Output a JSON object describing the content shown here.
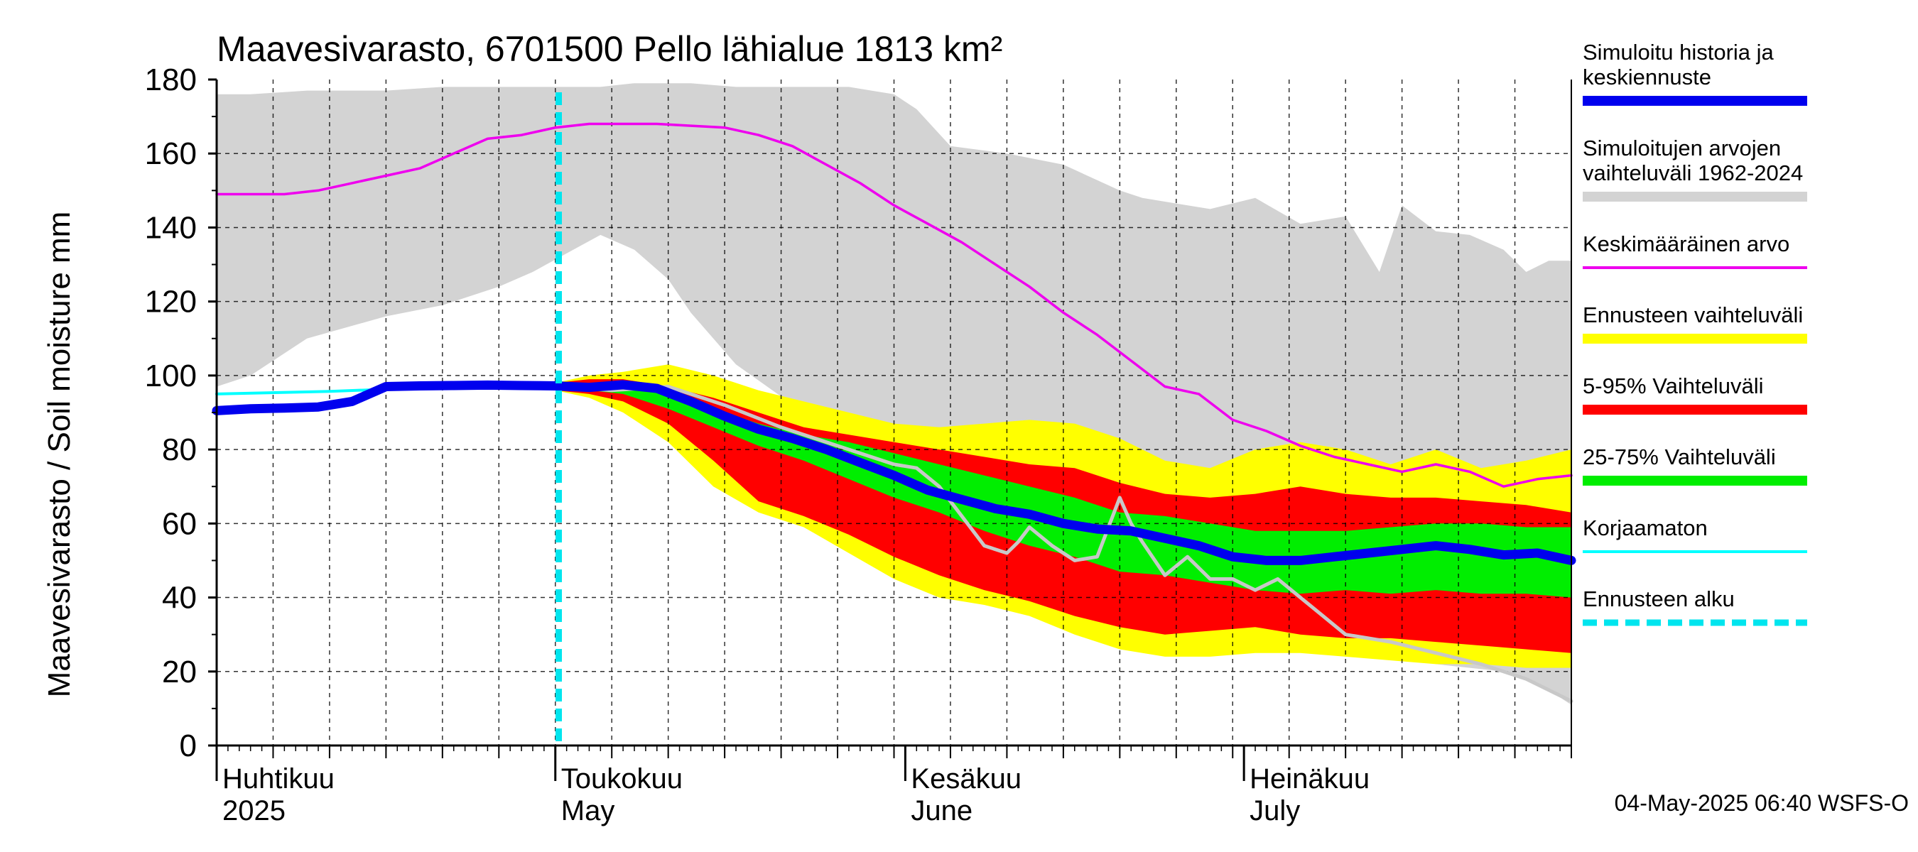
{
  "chart_data": {
    "type": "area",
    "title": "Maavesivarasto, 6701500 Pello lähialue 1813 km²",
    "ylabel": "Maavesivarasto / Soil moisture   mm",
    "ylim": [
      0,
      180
    ],
    "yticks": [
      0,
      20,
      40,
      60,
      80,
      100,
      120,
      140,
      160,
      180
    ],
    "xdomain_days": [
      0,
      120
    ],
    "x_unit": "days since 2025-04-01",
    "month_labels": [
      {
        "fi": "Huhtikuu",
        "en": "2025",
        "day": 0
      },
      {
        "fi": "Toukokuu",
        "en": "May",
        "day": 30
      },
      {
        "fi": "Kesäkuu",
        "en": "June",
        "day": 61
      },
      {
        "fi": "Heinäkuu",
        "en": "July",
        "day": 91
      }
    ],
    "forecast_start_day": 30.3,
    "series": [
      {
        "name": "Simuloitujen arvojen vaihteluväli 1962-2024",
        "kind": "band",
        "color": "#d3d3d3",
        "x": [
          0,
          3,
          8,
          15,
          20,
          25,
          28,
          31,
          34,
          37,
          40,
          42,
          46,
          52,
          56,
          58,
          60,
          62,
          65,
          70,
          75,
          80,
          82,
          88,
          92,
          96,
          100,
          103,
          105,
          108,
          111,
          114,
          116,
          118,
          120
        ],
        "upper": [
          176,
          176,
          177,
          177,
          178,
          178,
          178,
          178,
          178,
          179,
          179,
          179,
          178,
          178,
          178,
          177,
          176,
          172,
          162,
          160,
          157,
          150,
          148,
          145,
          148,
          141,
          143,
          128,
          146,
          139,
          138,
          134,
          128,
          131,
          131
        ],
        "lower": [
          97,
          100,
          110,
          116,
          119,
          124,
          128,
          133,
          138,
          134,
          126,
          117,
          103,
          90,
          82,
          78,
          76,
          75,
          75,
          72,
          70,
          68,
          68,
          66,
          63,
          57,
          38,
          30,
          25,
          22,
          21,
          20,
          18,
          15,
          11
        ]
      },
      {
        "name": "Ennusteen vaihteluväli",
        "kind": "band",
        "color": "#ffff00",
        "x": [
          30,
          33,
          36,
          40,
          44,
          48,
          52,
          56,
          60,
          64,
          68,
          72,
          76,
          80,
          84,
          88,
          92,
          96,
          100,
          104,
          108,
          112,
          116,
          120
        ],
        "upper": [
          98,
          100,
          101,
          103,
          100,
          96,
          93,
          90,
          87,
          86,
          87,
          88,
          87,
          83,
          77,
          75,
          80,
          82,
          80,
          76,
          80,
          75,
          77,
          80
        ],
        "lower": [
          96,
          94,
          90,
          82,
          70,
          63,
          59,
          52,
          45,
          40,
          38,
          35,
          30,
          26,
          24,
          24,
          25,
          25,
          24,
          23,
          22,
          22,
          21,
          21
        ]
      },
      {
        "name": "5-95% Vaihteluväli",
        "kind": "band",
        "color": "#ff0000",
        "x": [
          30,
          33,
          36,
          40,
          44,
          48,
          52,
          56,
          60,
          64,
          68,
          72,
          76,
          80,
          84,
          88,
          92,
          96,
          100,
          104,
          108,
          112,
          116,
          120
        ],
        "upper": [
          98,
          99,
          99,
          97,
          94,
          90,
          86,
          84,
          82,
          80,
          78,
          76,
          75,
          71,
          68,
          67,
          68,
          70,
          68,
          67,
          67,
          66,
          65,
          63
        ],
        "lower": [
          96,
          95,
          93,
          87,
          77,
          66,
          62,
          57,
          51,
          46,
          42,
          39,
          35,
          32,
          30,
          31,
          32,
          30,
          29,
          29,
          28,
          27,
          26,
          25
        ]
      },
      {
        "name": "25-75% Vaihteluväli",
        "kind": "band",
        "color": "#00ee00",
        "x": [
          30,
          33,
          36,
          40,
          44,
          48,
          52,
          56,
          60,
          64,
          68,
          72,
          76,
          80,
          84,
          88,
          92,
          96,
          100,
          104,
          108,
          112,
          116,
          120
        ],
        "upper": [
          97,
          97,
          97,
          95,
          91,
          87,
          84,
          82,
          79,
          76,
          73,
          70,
          67,
          63,
          62,
          60,
          58,
          58,
          58,
          59,
          60,
          60,
          59,
          59
        ],
        "lower": [
          97,
          96,
          95,
          91,
          86,
          81,
          77,
          72,
          67,
          63,
          58,
          54,
          51,
          47,
          46,
          44,
          42,
          41,
          42,
          41,
          42,
          41,
          41,
          40
        ]
      },
      {
        "name": "Korjaamaton",
        "kind": "line",
        "color": "#00ffff",
        "x": [
          0,
          10,
          15,
          20,
          25,
          28,
          30
        ],
        "values": [
          95,
          95.7,
          96.3,
          96.7,
          97,
          97,
          97
        ]
      },
      {
        "name": "Korjaamaton (ennuste)",
        "kind": "line",
        "color": "#c8c8c8",
        "x": [
          30,
          35,
          40,
          45,
          50,
          55,
          60,
          62,
          64,
          66,
          68,
          70,
          71,
          72,
          74,
          76,
          78,
          80,
          81,
          82,
          84,
          86,
          88,
          90,
          92,
          94,
          96,
          98,
          100,
          104,
          108,
          112,
          116,
          120
        ],
        "values": [
          97,
          96,
          97,
          92,
          86,
          81,
          76,
          75,
          70,
          62,
          54,
          52,
          55,
          59,
          54,
          50,
          51,
          67,
          60,
          55,
          46,
          51,
          45,
          45,
          42,
          45,
          40,
          35,
          30,
          28,
          25,
          22,
          18,
          12
        ]
      },
      {
        "name": "Keskimääräinen arvo",
        "kind": "line",
        "color": "#ee00ee",
        "x": [
          0,
          3,
          6,
          9,
          12,
          15,
          18,
          21,
          24,
          27,
          30,
          33,
          36,
          39,
          42,
          45,
          48,
          51,
          54,
          57,
          60,
          63,
          66,
          69,
          72,
          75,
          78,
          81,
          84,
          87,
          90,
          93,
          96,
          99,
          102,
          105,
          108,
          111,
          114,
          117,
          120
        ],
        "values": [
          149,
          149,
          149,
          150,
          152,
          154,
          156,
          160,
          164,
          165,
          167,
          168,
          168,
          168,
          167.5,
          167,
          165,
          162,
          157,
          152,
          146,
          141,
          136,
          130,
          124,
          117,
          111,
          104,
          97,
          95,
          88,
          85,
          81,
          78,
          76,
          74,
          76,
          74,
          70,
          72,
          73
        ]
      },
      {
        "name": "Simuloitu historia ja keskiennuste",
        "kind": "line",
        "color": "#0000ee",
        "x": [
          0,
          3,
          6,
          9,
          12,
          15,
          18,
          21,
          24,
          27,
          30,
          33,
          36,
          39,
          42,
          45,
          48,
          51,
          54,
          57,
          60,
          63,
          66,
          69,
          72,
          75,
          78,
          81,
          84,
          87,
          90,
          93,
          96,
          99,
          102,
          105,
          108,
          111,
          114,
          117,
          120
        ],
        "values": [
          90.5,
          91,
          91.2,
          91.5,
          93,
          97,
          97.2,
          97.3,
          97.4,
          97.3,
          97.2,
          96.8,
          97.5,
          96.5,
          93,
          89,
          85.5,
          83,
          80,
          76.5,
          73,
          69,
          66.5,
          64,
          62.5,
          60,
          58.5,
          58,
          56,
          54,
          51,
          50,
          50,
          51,
          52,
          53,
          54,
          53,
          51.5,
          52,
          50
        ]
      }
    ],
    "legend": [
      {
        "label": "Simuloitu historia ja keskiennuste",
        "lines": [
          "Simuloitu historia ja",
          "keskiennuste"
        ],
        "color": "#0000ee",
        "style": "thick"
      },
      {
        "label": "Simuloitujen arvojen vaihteluväli 1962-2024",
        "lines": [
          "Simuloitujen arvojen",
          "vaihteluväli 1962-2024"
        ],
        "color": "#d3d3d3",
        "style": "thick"
      },
      {
        "label": "Keskimääräinen arvo",
        "lines": [
          "Keskimääräinen arvo"
        ],
        "color": "#ee00ee",
        "style": "thin"
      },
      {
        "label": "Ennusteen vaihteluväli",
        "lines": [
          "Ennusteen vaihteluväli"
        ],
        "color": "#ffff00",
        "style": "thick"
      },
      {
        "label": "5-95% Vaihteluväli",
        "lines": [
          "5-95% Vaihteluväli"
        ],
        "color": "#ff0000",
        "style": "thick"
      },
      {
        "label": "25-75% Vaihteluväli",
        "lines": [
          "25-75% Vaihteluväli"
        ],
        "color": "#00ee00",
        "style": "thick"
      },
      {
        "label": "Korjaamaton",
        "lines": [
          "Korjaamaton"
        ],
        "color": "#00ffff",
        "style": "thin"
      },
      {
        "label": "Ennusteen alku",
        "lines": [
          "Ennusteen alku"
        ],
        "color": "#00e5ee",
        "style": "dashed"
      }
    ],
    "footer": "04-May-2025 06:40 WSFS-O"
  }
}
